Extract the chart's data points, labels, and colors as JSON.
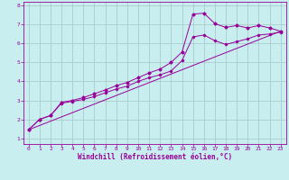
{
  "bg_color": "#c8eef0",
  "line_color": "#990099",
  "grid_color": "#aacccc",
  "xlabel": "Windchill (Refroidissement éolien,°C)",
  "xlim": [
    -0.5,
    23.5
  ],
  "ylim": [
    0.7,
    8.2
  ],
  "xticks": [
    0,
    1,
    2,
    3,
    4,
    5,
    6,
    7,
    8,
    9,
    10,
    11,
    12,
    13,
    14,
    15,
    16,
    17,
    18,
    19,
    20,
    21,
    22,
    23
  ],
  "yticks": [
    1,
    2,
    3,
    4,
    5,
    6,
    7,
    8
  ],
  "curve1_x": [
    0,
    1,
    2,
    3,
    4,
    5,
    6,
    7,
    8,
    9,
    10,
    11,
    12,
    13,
    14,
    15,
    16,
    17,
    18,
    19,
    20,
    21,
    22,
    23
  ],
  "curve1_y": [
    1.45,
    2.0,
    2.2,
    2.9,
    3.0,
    3.15,
    3.35,
    3.55,
    3.78,
    3.95,
    4.2,
    4.45,
    4.65,
    5.0,
    5.55,
    7.55,
    7.6,
    7.05,
    6.85,
    6.95,
    6.82,
    6.95,
    6.82,
    6.65
  ],
  "curve2_x": [
    0,
    1,
    2,
    3,
    4,
    5,
    6,
    7,
    8,
    9,
    10,
    11,
    12,
    13,
    14,
    15,
    16,
    17,
    18,
    19,
    20,
    21,
    22,
    23
  ],
  "curve2_y": [
    1.45,
    2.0,
    2.2,
    2.85,
    2.95,
    3.05,
    3.2,
    3.4,
    3.6,
    3.75,
    4.0,
    4.2,
    4.35,
    4.55,
    5.1,
    6.35,
    6.45,
    6.15,
    5.95,
    6.1,
    6.25,
    6.45,
    6.5,
    6.6
  ],
  "curve3_x": [
    0,
    23
  ],
  "curve3_y": [
    1.45,
    6.65
  ],
  "tick_fontsize": 4.5,
  "label_fontsize": 5.5,
  "xlabel_fontweight": "bold"
}
